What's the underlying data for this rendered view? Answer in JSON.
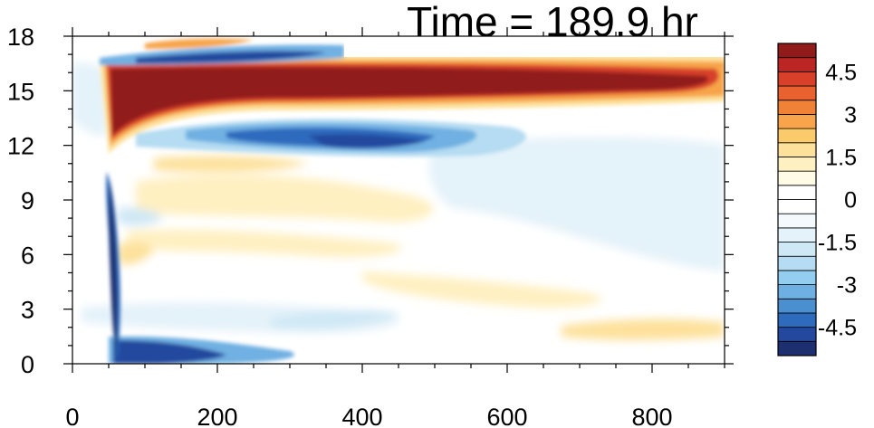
{
  "chart_data": {
    "type": "heatmap",
    "title": "Time = 189.9 hr",
    "xlabel": "",
    "ylabel": "",
    "xlim": [
      0,
      900
    ],
    "ylim": [
      0,
      18
    ],
    "x_ticks": [
      0,
      200,
      400,
      600,
      800
    ],
    "x_tick_labels": [
      "0",
      "200",
      "400",
      "600",
      "800"
    ],
    "y_ticks": [
      0,
      3,
      6,
      9,
      12,
      15,
      18
    ],
    "y_tick_labels": [
      "0",
      "3",
      "6",
      "9",
      "12",
      "15",
      "18"
    ],
    "grid": false,
    "legend": "colorbar-right",
    "colorbar": {
      "levels": [
        -5.5,
        -5,
        -4.5,
        -4,
        -3.5,
        -3,
        -2.5,
        -2,
        -1.5,
        -1,
        -0.5,
        0,
        0.5,
        1,
        1.5,
        2,
        2.5,
        3,
        3.5,
        4,
        4.5,
        5,
        5.5
      ],
      "labels": [
        "4.5",
        "3",
        "1.5",
        "0",
        "-1.5",
        "-3",
        "-4.5"
      ],
      "label_values": [
        4.5,
        3,
        1.5,
        0,
        -1.5,
        -3,
        -4.5
      ],
      "colors": [
        "#1d2f6e",
        "#23489e",
        "#2f6bbd",
        "#4a8fd0",
        "#6fb0e2",
        "#93cdf0",
        "#b5dcf2",
        "#cfe8f5",
        "#e4f2f9",
        "#f3f9fc",
        "#ffffff",
        "#ffffff",
        "#fffbe5",
        "#fff0c2",
        "#fde19b",
        "#fbca6a",
        "#f7a44a",
        "#f08237",
        "#e8612f",
        "#d8402a",
        "#bb2524",
        "#911a1a"
      ]
    },
    "features": [
      {
        "name": "upper warm jet",
        "value": 5.5,
        "x_range": [
          55,
          900
        ],
        "y_center": 15.3
      },
      {
        "name": "lower cold band",
        "value": -3.5,
        "x_range": [
          150,
          560
        ],
        "y_center": 12.3
      },
      {
        "name": "surface cold layer",
        "value": -5.5,
        "x_range": [
          60,
          250
        ],
        "y_center": 0.8
      },
      {
        "name": "vertical cold line",
        "value": -5,
        "x": 55,
        "y_range": [
          0.5,
          11
        ]
      },
      {
        "name": "top cold band",
        "value": -4,
        "x_range": [
          100,
          380
        ],
        "y_center": 17
      }
    ]
  }
}
